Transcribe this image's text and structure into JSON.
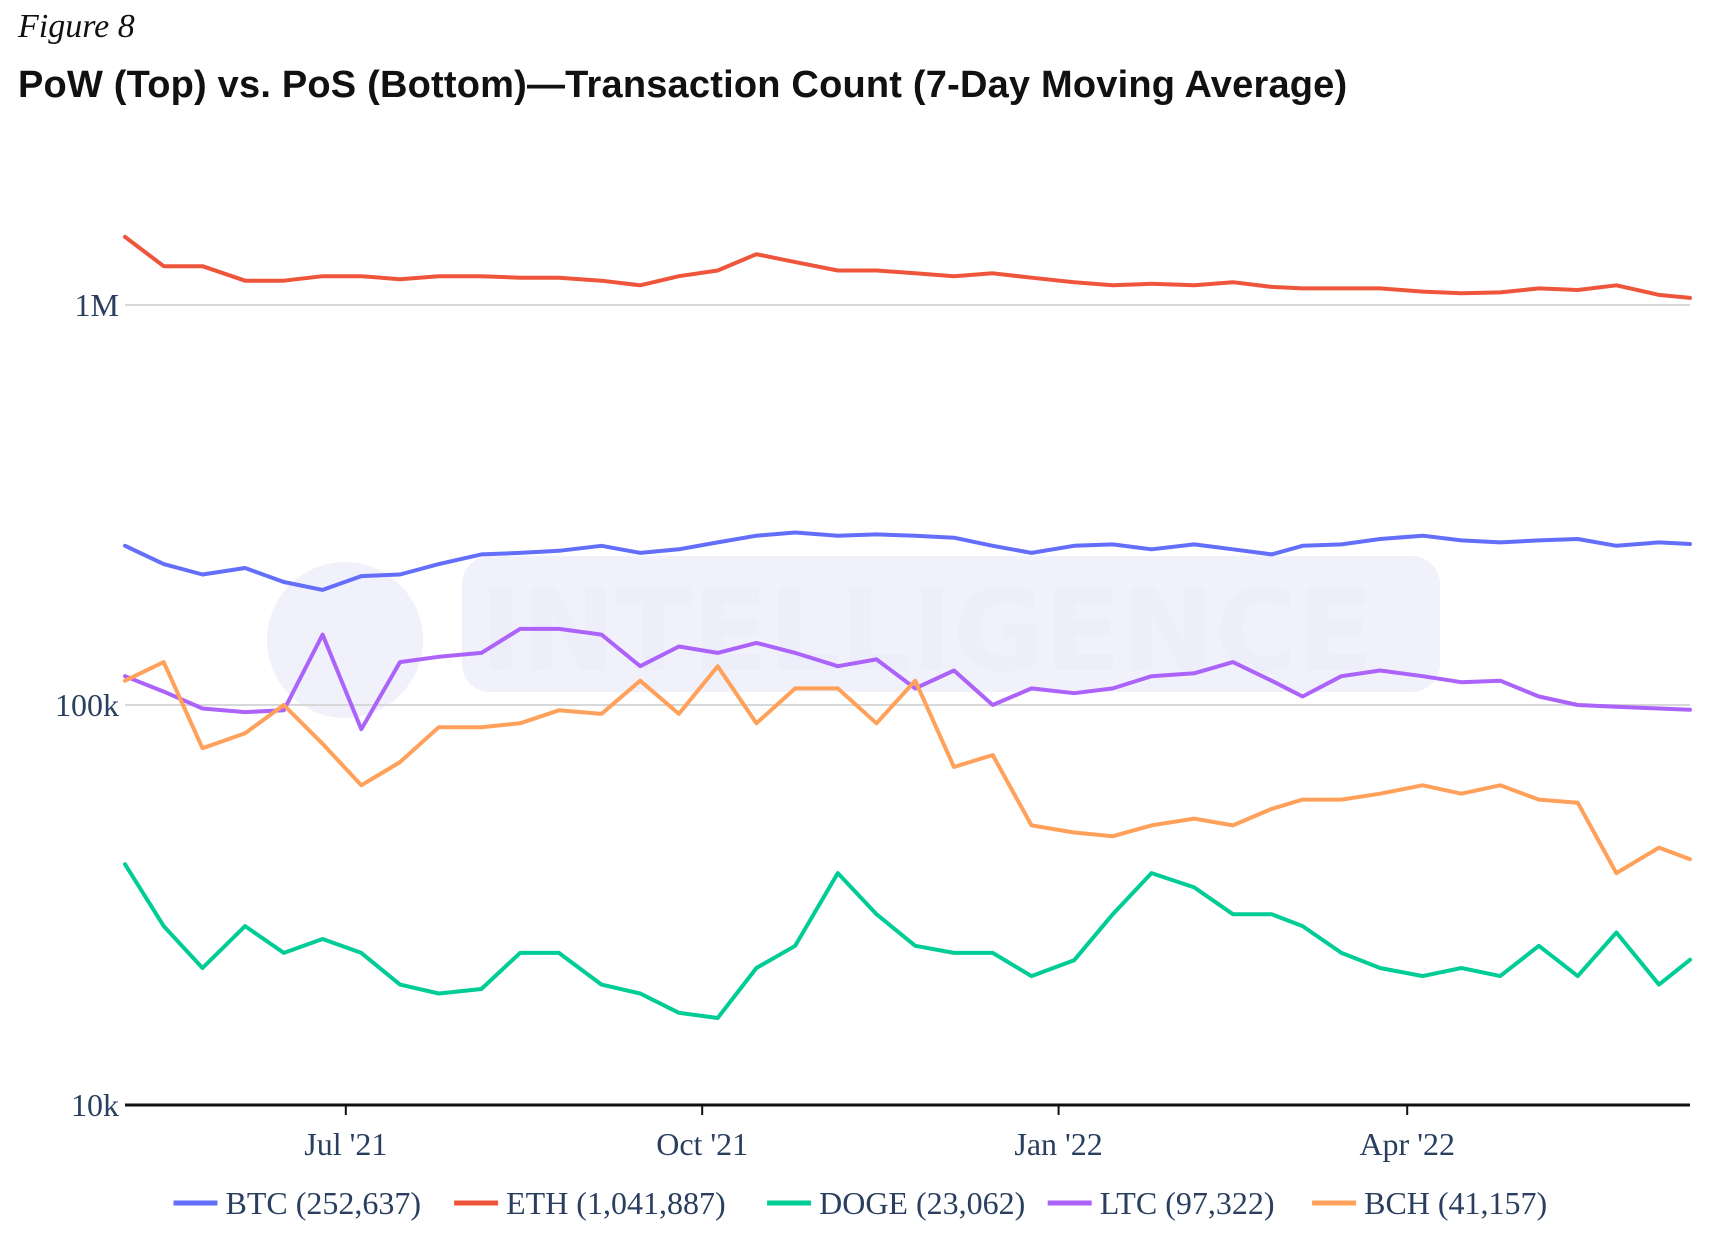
{
  "figure_label": "Figure 8",
  "colors": {
    "BTC": "#636efa",
    "ETH": "#ef553b",
    "DOGE": "#00cc96",
    "LTC": "#ab63fa",
    "BCH": "#ffa15a",
    "grid": "#d8d8d8",
    "axis_text": "#2a3f5f"
  },
  "watermark": {
    "text": "INTELLIGENCE"
  },
  "chart_data": {
    "type": "line",
    "title": "PoW (Top) vs. PoS (Bottom)—Transaction Count (7-Day Moving Average)",
    "xlabel": "",
    "ylabel": "",
    "y_scale": "log",
    "ylim": [
      10000,
      1500000
    ],
    "xlim": [
      "2021-05-05",
      "2022-06-13"
    ],
    "grid": true,
    "legend_position": "bottom",
    "y_ticks": [
      {
        "value": 10000,
        "label": "10k"
      },
      {
        "value": 100000,
        "label": "100k"
      },
      {
        "value": 1000000,
        "label": "1M"
      }
    ],
    "x_ticks": [
      {
        "date": "2021-07-01",
        "label": "Jul '21"
      },
      {
        "date": "2021-10-01",
        "label": "Oct '21"
      },
      {
        "date": "2022-01-01",
        "label": "Jan '22"
      },
      {
        "date": "2022-04-01",
        "label": "Apr '22"
      }
    ],
    "x": [
      "2021-05-05",
      "2021-05-15",
      "2021-05-25",
      "2021-06-05",
      "2021-06-15",
      "2021-06-25",
      "2021-07-05",
      "2021-07-15",
      "2021-07-25",
      "2021-08-05",
      "2021-08-15",
      "2021-08-25",
      "2021-09-05",
      "2021-09-15",
      "2021-09-25",
      "2021-10-05",
      "2021-10-15",
      "2021-10-25",
      "2021-11-05",
      "2021-11-15",
      "2021-11-25",
      "2021-12-05",
      "2021-12-15",
      "2021-12-25",
      "2022-01-05",
      "2022-01-15",
      "2022-01-25",
      "2022-02-05",
      "2022-02-15",
      "2022-02-25",
      "2022-03-05",
      "2022-03-15",
      "2022-03-25",
      "2022-04-05",
      "2022-04-15",
      "2022-04-25",
      "2022-05-05",
      "2022-05-15",
      "2022-05-25",
      "2022-06-05",
      "2022-06-13"
    ],
    "series": [
      {
        "name": "BTC (252,637)",
        "key": "BTC",
        "values": [
          250000,
          225000,
          212000,
          220000,
          203000,
          194000,
          210000,
          212000,
          225000,
          238000,
          240000,
          243000,
          250000,
          240000,
          245000,
          255000,
          265000,
          270000,
          265000,
          267000,
          265000,
          262000,
          250000,
          240000,
          250000,
          252000,
          245000,
          252000,
          245000,
          238000,
          250000,
          252000,
          260000,
          265000,
          258000,
          255000,
          258000,
          260000,
          250000,
          255000,
          252637
        ]
      },
      {
        "name": "ETH (1,041,887)",
        "key": "ETH",
        "values": [
          1480000,
          1250000,
          1250000,
          1150000,
          1150000,
          1180000,
          1180000,
          1160000,
          1180000,
          1180000,
          1170000,
          1170000,
          1150000,
          1120000,
          1180000,
          1220000,
          1340000,
          1280000,
          1220000,
          1220000,
          1200000,
          1180000,
          1200000,
          1170000,
          1140000,
          1120000,
          1130000,
          1120000,
          1140000,
          1110000,
          1100000,
          1100000,
          1100000,
          1080000,
          1070000,
          1075000,
          1100000,
          1090000,
          1120000,
          1060000,
          1041887
        ]
      },
      {
        "name": "DOGE (23,062)",
        "key": "DOGE",
        "values": [
          40000,
          28000,
          22000,
          28000,
          24000,
          26000,
          24000,
          20000,
          19000,
          19500,
          24000,
          24000,
          20000,
          19000,
          17000,
          16500,
          22000,
          25000,
          38000,
          30000,
          25000,
          24000,
          24000,
          21000,
          23000,
          30000,
          38000,
          35000,
          30000,
          30000,
          28000,
          24000,
          22000,
          21000,
          22000,
          21000,
          25000,
          21000,
          27000,
          20000,
          23062
        ]
      },
      {
        "name": "LTC (97,322)",
        "key": "LTC",
        "values": [
          118000,
          108000,
          98000,
          96000,
          97000,
          150000,
          87000,
          128000,
          132000,
          135000,
          155000,
          155000,
          150000,
          125000,
          140000,
          135000,
          143000,
          135000,
          125000,
          130000,
          110000,
          122000,
          100000,
          110000,
          107000,
          110000,
          118000,
          120000,
          128000,
          115000,
          105000,
          118000,
          122000,
          118000,
          114000,
          115000,
          105000,
          100000,
          99000,
          98000,
          97322
        ]
      },
      {
        "name": "BCH (41,157)",
        "key": "BCH",
        "values": [
          115000,
          128000,
          78000,
          85000,
          100000,
          80000,
          63000,
          72000,
          88000,
          88000,
          90000,
          97000,
          95000,
          115000,
          95000,
          125000,
          90000,
          110000,
          110000,
          90000,
          115000,
          70000,
          75000,
          50000,
          48000,
          47000,
          50000,
          52000,
          50000,
          55000,
          58000,
          58000,
          60000,
          63000,
          60000,
          63000,
          58000,
          57000,
          38000,
          44000,
          41157
        ]
      }
    ]
  }
}
